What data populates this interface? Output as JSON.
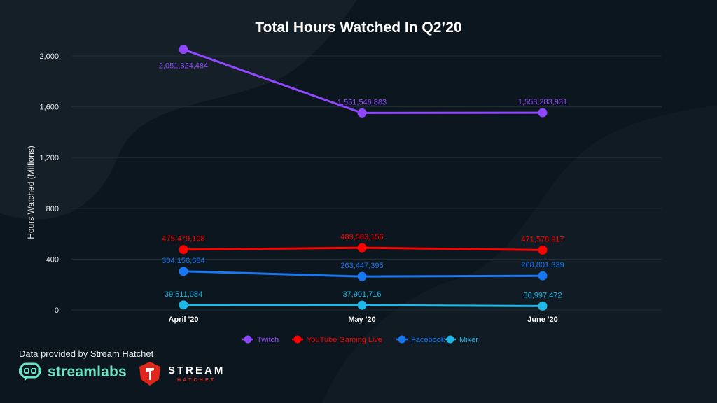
{
  "chart_data": {
    "type": "line",
    "title": "Total Hours Watched In Q2’20",
    "xlabel": "",
    "ylabel": "Hours Watched (Millions)",
    "categories": [
      "April '20",
      "May '20",
      "June '20"
    ],
    "ylim": [
      0,
      2000
    ],
    "yticks": [
      0,
      400,
      800,
      1200,
      1600,
      2000
    ],
    "ytick_labels": [
      "0",
      "400",
      "800",
      "1,200",
      "1,600",
      "2,000"
    ],
    "grid": true,
    "legend_position": "bottom",
    "series": [
      {
        "name": "Twitch",
        "color": "#9147ff",
        "values": [
          2051.324484,
          1551.546883,
          1553.283931
        ],
        "labels": [
          "2,051,324,484",
          "1,551,546,883",
          "1,553,283,931"
        ],
        "label_positions": [
          "below",
          "above",
          "above"
        ]
      },
      {
        "name": "YouTube Gaming Live",
        "color": "#ff0000",
        "values": [
          475.479108,
          489.583156,
          471.578917
        ],
        "labels": [
          "475,479,108",
          "489,583,156",
          "471,578,917"
        ],
        "label_positions": [
          "above",
          "above",
          "above"
        ]
      },
      {
        "name": "Facebook",
        "color": "#1877f2",
        "values": [
          304.156684,
          263.447395,
          268.801339
        ],
        "labels": [
          "304,156,684",
          "263,447,395",
          "268,801,339"
        ],
        "label_positions": [
          "above",
          "above",
          "above"
        ]
      },
      {
        "name": "Mixer",
        "color": "#1fb9e9",
        "values": [
          39.511084,
          37.901716,
          30.997472
        ],
        "labels": [
          "39,511,084",
          "37,901,716",
          "30,997,472"
        ],
        "label_positions": [
          "above",
          "above",
          "above"
        ]
      }
    ]
  },
  "footer": {
    "note": "Data provided by Stream Hatchet",
    "logo_streamlabs": "streamlabs",
    "logo_hatchet_line1": "STREAM",
    "logo_hatchet_line2": "HATCHET"
  },
  "colors": {
    "background": "#0c161e",
    "background_shape": "#16212a",
    "gridline": "#1f2b34",
    "axis_text": "#e6e8ea",
    "streamlabs_green": "#6ce3c2",
    "hatchet_red": "#e0251b"
  }
}
